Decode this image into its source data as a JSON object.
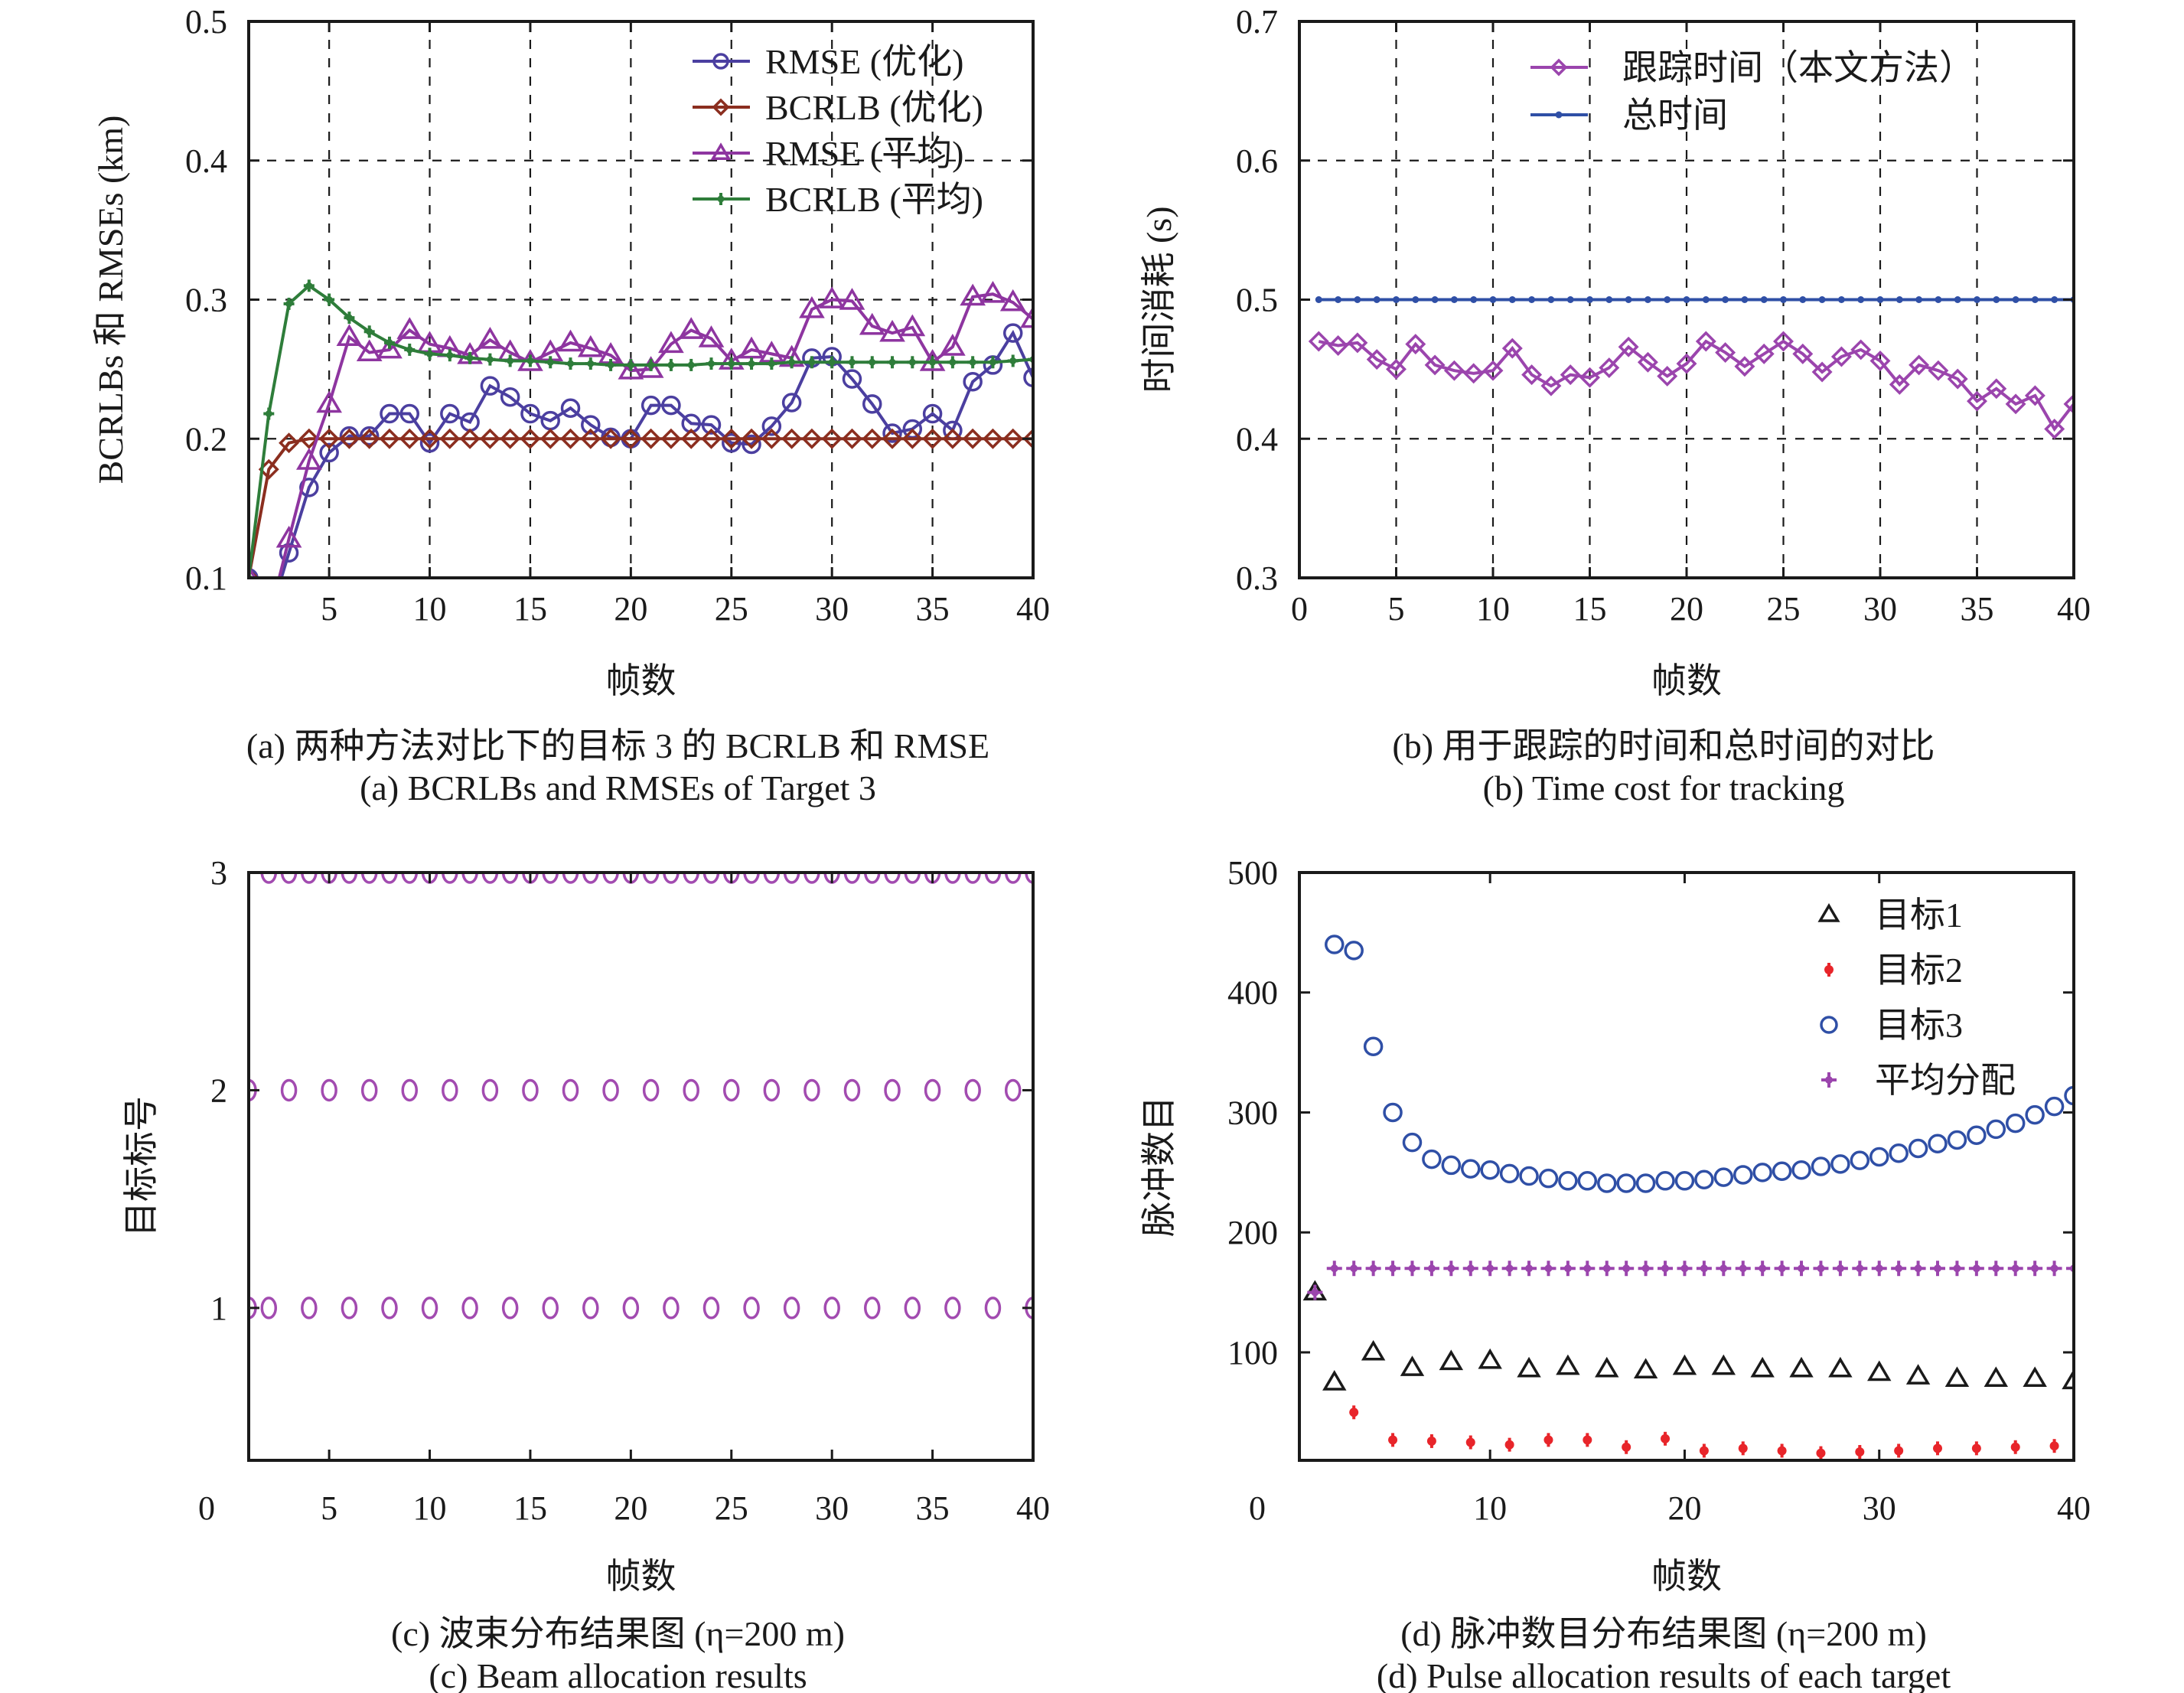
{
  "figure": {
    "panels": [
      "a",
      "b",
      "c",
      "d"
    ]
  },
  "chart_data": [
    {
      "id": "a",
      "type": "line",
      "title": "",
      "caption_cn": "(a) 两种方法对比下的目标 3 的 BCRLB 和 RMSE",
      "caption_en": "(a) BCRLBs and RMSEs of Target 3",
      "xlabel": "帧数",
      "ylabel": "BCRLBs 和 RMSEs (km)",
      "xlim": [
        1,
        40
      ],
      "ylim": [
        0.1,
        0.5
      ],
      "xticks": [
        5,
        10,
        15,
        20,
        25,
        30,
        35,
        40
      ],
      "xtick_labels": [
        "5",
        "10",
        "15",
        "20",
        "25",
        "30",
        "35",
        "40"
      ],
      "yticks": [
        0.1,
        0.2,
        0.3,
        0.4,
        0.5
      ],
      "ytick_labels": [
        "0.1",
        "0.2",
        "0.3",
        "0.4",
        "0.5"
      ],
      "grid": true,
      "legend_position": "top-right",
      "x": [
        1,
        2,
        3,
        4,
        5,
        6,
        7,
        8,
        9,
        10,
        11,
        12,
        13,
        14,
        15,
        16,
        17,
        18,
        19,
        20,
        21,
        22,
        23,
        24,
        25,
        26,
        27,
        28,
        29,
        30,
        31,
        32,
        33,
        34,
        35,
        36,
        37,
        38,
        39,
        40
      ],
      "series": [
        {
          "name": "RMSE (优化)",
          "color": "#4b3fa0",
          "marker": "circle",
          "values": [
            0.1,
            0.07,
            0.118,
            0.165,
            0.19,
            0.202,
            0.202,
            0.218,
            0.218,
            0.197,
            0.218,
            0.212,
            0.238,
            0.23,
            0.218,
            0.213,
            0.222,
            0.21,
            0.201,
            0.2,
            0.224,
            0.224,
            0.211,
            0.21,
            0.197,
            0.196,
            0.209,
            0.226,
            0.258,
            0.259,
            0.243,
            0.225,
            0.204,
            0.207,
            0.218,
            0.206,
            0.241,
            0.253,
            0.276,
            0.244
          ]
        },
        {
          "name": "BCRLB (优化)",
          "color": "#8b2e1f",
          "marker": "diamond",
          "values": [
            0.1,
            0.178,
            0.197,
            0.2,
            0.2,
            0.2,
            0.2,
            0.2,
            0.2,
            0.2,
            0.2,
            0.2,
            0.2,
            0.2,
            0.2,
            0.2,
            0.2,
            0.2,
            0.2,
            0.2,
            0.2,
            0.2,
            0.2,
            0.2,
            0.2,
            0.2,
            0.2,
            0.2,
            0.2,
            0.2,
            0.2,
            0.2,
            0.2,
            0.2,
            0.2,
            0.2,
            0.2,
            0.2,
            0.2,
            0.2
          ]
        },
        {
          "name": "RMSE (平均)",
          "color": "#8e35a0",
          "marker": "triangle",
          "values": [
            0.1,
            0.07,
            0.128,
            0.184,
            0.225,
            0.273,
            0.262,
            0.264,
            0.278,
            0.268,
            0.265,
            0.26,
            0.271,
            0.262,
            0.255,
            0.262,
            0.269,
            0.265,
            0.26,
            0.249,
            0.25,
            0.268,
            0.278,
            0.272,
            0.256,
            0.264,
            0.261,
            0.258,
            0.293,
            0.3,
            0.299,
            0.281,
            0.276,
            0.28,
            0.255,
            0.266,
            0.302,
            0.304,
            0.298,
            0.286
          ]
        },
        {
          "name": "BCRLB (平均)",
          "color": "#2e7d3a",
          "marker": "star",
          "values": [
            0.1,
            0.218,
            0.297,
            0.31,
            0.3,
            0.287,
            0.277,
            0.269,
            0.264,
            0.261,
            0.26,
            0.258,
            0.257,
            0.256,
            0.256,
            0.255,
            0.254,
            0.254,
            0.253,
            0.253,
            0.253,
            0.253,
            0.253,
            0.254,
            0.254,
            0.254,
            0.254,
            0.255,
            0.255,
            0.255,
            0.255,
            0.255,
            0.255,
            0.255,
            0.255,
            0.255,
            0.255,
            0.255,
            0.256,
            0.257
          ]
        }
      ]
    },
    {
      "id": "b",
      "type": "line",
      "title": "",
      "caption_cn": "(b) 用于跟踪的时间和总时间的对比",
      "caption_en": "(b) Time cost for tracking",
      "xlabel": "帧数",
      "ylabel": "时间消耗 (s)",
      "xlim": [
        0,
        40
      ],
      "ylim": [
        0.3,
        0.7
      ],
      "xticks": [
        0,
        5,
        10,
        15,
        20,
        25,
        30,
        35,
        40
      ],
      "xtick_labels": [
        "0",
        "5",
        "10",
        "15",
        "20",
        "25",
        "30",
        "35",
        "40"
      ],
      "yticks": [
        0.3,
        0.4,
        0.5,
        0.6,
        0.7
      ],
      "ytick_labels": [
        "0.3",
        "0.4",
        "0.5",
        "0.6",
        "0.7"
      ],
      "grid": true,
      "legend_position": "top-center",
      "x": [
        1,
        2,
        3,
        4,
        5,
        6,
        7,
        8,
        9,
        10,
        11,
        12,
        13,
        14,
        15,
        16,
        17,
        18,
        19,
        20,
        21,
        22,
        23,
        24,
        25,
        26,
        27,
        28,
        29,
        30,
        31,
        32,
        33,
        34,
        35,
        36,
        37,
        38,
        39,
        40
      ],
      "series": [
        {
          "name": "跟踪时间（本文方法）",
          "color": "#9b45ad",
          "marker": "diamond",
          "values": [
            0.47,
            0.467,
            0.469,
            0.457,
            0.45,
            0.468,
            0.453,
            0.449,
            0.447,
            0.449,
            0.465,
            0.446,
            0.438,
            0.446,
            0.444,
            0.451,
            0.466,
            0.455,
            0.445,
            0.454,
            0.47,
            0.462,
            0.452,
            0.461,
            0.47,
            0.461,
            0.448,
            0.459,
            0.464,
            0.456,
            0.439,
            0.453,
            0.449,
            0.443,
            0.427,
            0.436,
            0.425,
            0.431,
            0.407,
            0.425
          ]
        },
        {
          "name": "总时间",
          "color": "#2f4fa6",
          "marker": "dot",
          "values": [
            0.5,
            0.5,
            0.5,
            0.5,
            0.5,
            0.5,
            0.5,
            0.5,
            0.5,
            0.5,
            0.5,
            0.5,
            0.5,
            0.5,
            0.5,
            0.5,
            0.5,
            0.5,
            0.5,
            0.5,
            0.5,
            0.5,
            0.5,
            0.5,
            0.5,
            0.5,
            0.5,
            0.5,
            0.5,
            0.5,
            0.5,
            0.5,
            0.5,
            0.5,
            0.5,
            0.5,
            0.5,
            0.5,
            0.5,
            0.5
          ]
        }
      ]
    },
    {
      "id": "c",
      "type": "scatter",
      "title": "",
      "caption_cn": "(c) 波束分布结果图 (η=200 m)",
      "caption_en": "(c) Beam allocation results",
      "xlabel": "帧数",
      "ylabel": "目标标号",
      "xlim": [
        1,
        40
      ],
      "ylim": [
        0.3,
        3
      ],
      "xticks": [
        5,
        10,
        15,
        20,
        25,
        30,
        35,
        40
      ],
      "xtick_labels": [
        "5",
        "10",
        "15",
        "20",
        "25",
        "30",
        "35",
        "40"
      ],
      "origin_label": "0",
      "yticks": [
        1,
        2,
        3
      ],
      "ytick_labels": [
        "1",
        "2",
        "3"
      ],
      "grid": false,
      "marker_color": "#a24bb0",
      "series": [
        {
          "name": "目标1",
          "y": 1,
          "x": [
            1,
            2,
            4,
            6,
            8,
            10,
            12,
            14,
            16,
            18,
            20,
            22,
            24,
            26,
            28,
            30,
            32,
            34,
            36,
            38,
            40
          ]
        },
        {
          "name": "目标2",
          "y": 2,
          "x": [
            1,
            3,
            5,
            7,
            9,
            11,
            13,
            15,
            17,
            19,
            21,
            23,
            25,
            27,
            29,
            31,
            33,
            35,
            37,
            39
          ]
        },
        {
          "name": "目标3",
          "y": 3,
          "x": [
            2,
            3,
            4,
            5,
            6,
            7,
            8,
            9,
            10,
            11,
            12,
            13,
            14,
            15,
            16,
            17,
            18,
            19,
            20,
            21,
            22,
            23,
            24,
            25,
            26,
            27,
            28,
            29,
            30,
            31,
            32,
            33,
            34,
            35,
            36,
            37,
            38,
            39,
            40
          ]
        }
      ]
    },
    {
      "id": "d",
      "type": "scatter",
      "title": "",
      "caption_cn": "(d) 脉冲数目分布结果图 (η=200 m)",
      "caption_en": "(d) Pulse allocation results of each target",
      "xlabel": "帧数",
      "ylabel": "脉冲数目",
      "xlim": [
        0.2,
        40
      ],
      "ylim": [
        10,
        500
      ],
      "xticks": [
        10,
        20,
        30,
        40
      ],
      "xtick_labels": [
        "10",
        "20",
        "30",
        "40"
      ],
      "origin_label": "0",
      "yticks": [
        100,
        200,
        300,
        400,
        500
      ],
      "ytick_labels": [
        "100",
        "200",
        "300",
        "400",
        "500"
      ],
      "grid": false,
      "legend_position": "top-right",
      "series": [
        {
          "name": "目标1",
          "color": "#1a1a1a",
          "marker": "triangle",
          "x": [
            1,
            2,
            4,
            6,
            8,
            10,
            12,
            14,
            16,
            18,
            20,
            22,
            24,
            26,
            28,
            30,
            32,
            34,
            36,
            38,
            40
          ],
          "values": [
            150,
            75,
            100,
            87,
            92,
            93,
            86,
            88,
            86,
            85,
            88,
            88,
            86,
            86,
            86,
            83,
            80,
            78,
            78,
            78,
            76
          ]
        },
        {
          "name": "目标2",
          "color": "#e8252a",
          "marker": "asterisk",
          "x": [
            3,
            5,
            7,
            9,
            11,
            13,
            15,
            17,
            19,
            21,
            23,
            25,
            27,
            29,
            31,
            33,
            35,
            37,
            39
          ],
          "values": [
            50,
            27,
            26,
            25,
            23,
            27,
            27,
            21,
            28,
            18,
            20,
            18,
            16,
            17,
            18,
            20,
            20,
            21,
            22
          ]
        },
        {
          "name": "目标3",
          "color": "#2f4fa6",
          "marker": "circle",
          "x": [
            2,
            3,
            4,
            5,
            6,
            7,
            8,
            9,
            10,
            11,
            12,
            13,
            14,
            15,
            16,
            17,
            18,
            19,
            20,
            21,
            22,
            23,
            24,
            25,
            26,
            27,
            28,
            29,
            30,
            31,
            32,
            33,
            34,
            35,
            36,
            37,
            38,
            39,
            40
          ],
          "values": [
            440,
            435,
            355,
            300,
            275,
            261,
            256,
            253,
            252,
            249,
            247,
            245,
            243,
            243,
            241,
            241,
            241,
            243,
            243,
            244,
            246,
            248,
            250,
            251,
            252,
            255,
            257,
            260,
            263,
            266,
            270,
            274,
            277,
            281,
            286,
            291,
            298,
            305,
            314
          ]
        },
        {
          "name": "平均分配",
          "color": "#9b45ad",
          "marker": "plus",
          "x": [
            1,
            2,
            3,
            4,
            5,
            6,
            7,
            8,
            9,
            10,
            11,
            12,
            13,
            14,
            15,
            16,
            17,
            18,
            19,
            20,
            21,
            22,
            23,
            24,
            25,
            26,
            27,
            28,
            29,
            30,
            31,
            32,
            33,
            34,
            35,
            36,
            37,
            38,
            39,
            40
          ],
          "values": [
            150,
            170,
            170,
            170,
            170,
            170,
            170,
            170,
            170,
            170,
            170,
            170,
            170,
            170,
            170,
            170,
            170,
            170,
            170,
            170,
            170,
            170,
            170,
            170,
            170,
            170,
            170,
            170,
            170,
            170,
            170,
            170,
            170,
            170,
            170,
            170,
            170,
            170,
            170,
            170
          ]
        }
      ]
    }
  ]
}
